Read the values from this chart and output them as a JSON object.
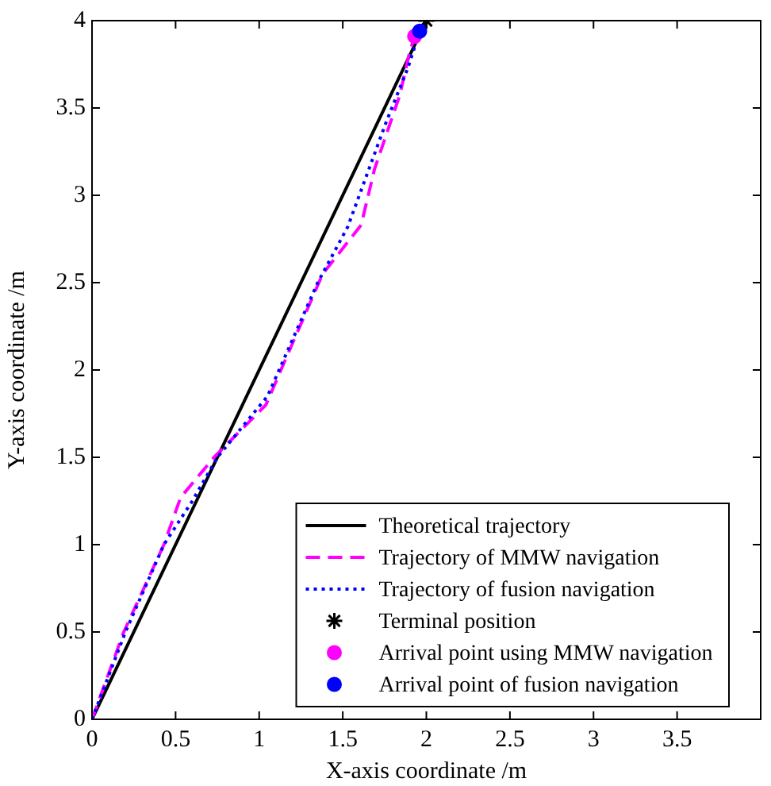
{
  "chart_data": {
    "type": "line",
    "xlabel": "X-axis coordinate /m",
    "ylabel": "Y-axis coordinate /m",
    "xlim": [
      0,
      4
    ],
    "ylim": [
      0,
      4
    ],
    "xticks": [
      0,
      0.5,
      1,
      1.5,
      2,
      2.5,
      3,
      3.5
    ],
    "yticks": [
      0,
      0.5,
      1,
      1.5,
      2,
      2.5,
      3,
      3.5,
      4
    ],
    "grid": false,
    "legend": "bottom right",
    "series": [
      {
        "name": "Theoretical trajectory",
        "color": "#000000",
        "line_style": "solid",
        "marker": "none",
        "x": [
          0,
          2
        ],
        "values": [
          0,
          4
        ]
      },
      {
        "name": "Trajectory of MMW navigation",
        "color": "#ff00ff",
        "line_style": "dashed",
        "marker": "none",
        "x": [
          0,
          0.19,
          0.43,
          0.53,
          0.73,
          1.04,
          1.13,
          1.38,
          1.61,
          1.69,
          1.84,
          1.9,
          1.93
        ],
        "values": [
          0,
          0.5,
          1.0,
          1.27,
          1.5,
          1.8,
          2.0,
          2.55,
          2.83,
          3.15,
          3.57,
          3.82,
          3.91
        ]
      },
      {
        "name": "Trajectory of fusion navigation",
        "color": "#0000ff",
        "line_style": "dotted",
        "marker": "none",
        "x": [
          0,
          0.2,
          0.43,
          0.6,
          0.75,
          1.05,
          1.35,
          1.53,
          1.76,
          1.89,
          1.96
        ],
        "values": [
          0,
          0.5,
          1.0,
          1.25,
          1.5,
          1.85,
          2.5,
          2.82,
          3.42,
          3.73,
          3.94
        ]
      },
      {
        "name": "Terminal position",
        "type": "scatter",
        "color": "#000000",
        "marker": "cross",
        "x": [
          2
        ],
        "values": [
          4
        ]
      },
      {
        "name": "Arrival point using MMW navigation",
        "type": "scatter",
        "color": "#ff00ff",
        "marker": "circle",
        "x": [
          1.93
        ],
        "values": [
          3.91
        ]
      },
      {
        "name": "Arrival point of fusion navigation",
        "type": "scatter",
        "color": "#0000ff",
        "marker": "circle",
        "x": [
          1.96
        ],
        "values": [
          3.94
        ]
      }
    ]
  }
}
